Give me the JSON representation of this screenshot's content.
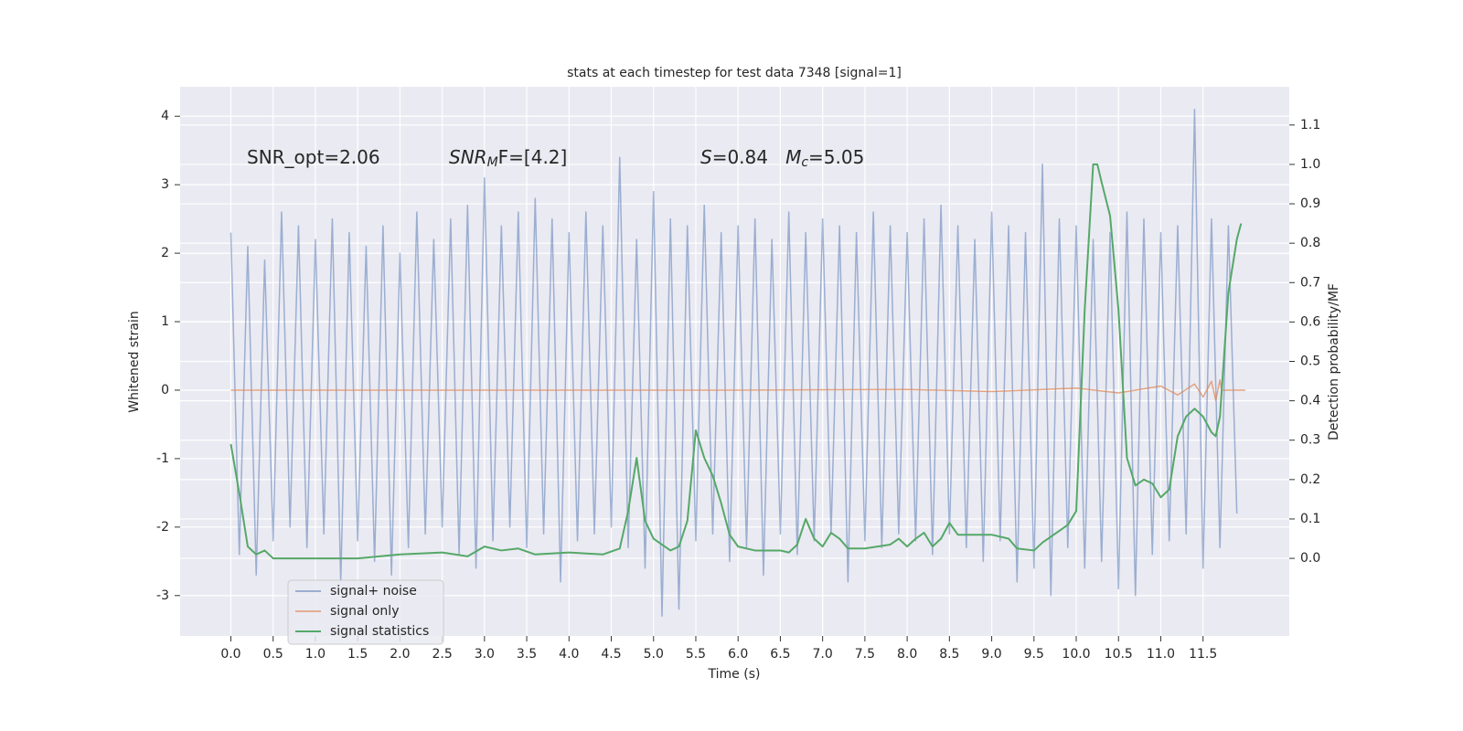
{
  "chart_data": {
    "type": "line",
    "title": "stats at each timestep for test data 7348 [signal=1]",
    "xlabel": "Time (s)",
    "ylabel": "Whitened strain",
    "y2label": "Detection probability/MF",
    "annotations": [
      [
        "SNR_opt=2.06"
      ],
      [
        "SNR",
        "M",
        "F=[4.2]"
      ],
      [
        "S",
        "=0.84   ",
        "M",
        "c",
        "=5.05"
      ]
    ],
    "xlim": [
      -0.6,
      12.52
    ],
    "xticks": [
      {
        "value": 0,
        "label": "0.0"
      },
      0.5,
      {
        "value": 1,
        "label": "1.0"
      },
      1.5,
      {
        "value": 2,
        "label": "2.0"
      },
      2.5,
      {
        "value": 3,
        "label": "3.0"
      },
      3.5,
      {
        "value": 4,
        "label": "4.0"
      },
      4.5,
      {
        "value": 5,
        "label": "5.0"
      },
      5.5,
      {
        "value": 6,
        "label": "6.0"
      },
      6.5,
      {
        "value": 7,
        "label": "7.0"
      },
      7.5,
      {
        "value": 8,
        "label": "8.0"
      },
      8.5,
      {
        "value": 9,
        "label": "9.0"
      },
      9.5,
      {
        "value": 10,
        "label": "10.0"
      },
      10.5,
      {
        "value": 11,
        "label": "11.0"
      },
      11.5
    ],
    "ylim": [
      -3.59,
      4.43
    ],
    "yticks": [
      -3,
      -2,
      -1,
      0,
      1,
      2,
      3,
      4
    ],
    "y2lim": [
      -0.197,
      1.197
    ],
    "y2ticks": [
      {
        "value": 0,
        "label": "0.0"
      },
      0.1,
      0.2,
      0.3,
      0.4,
      0.5,
      0.6,
      0.7,
      0.8,
      0.9,
      {
        "value": 1,
        "label": "1.0"
      },
      1.1
    ],
    "grid": true,
    "legend": "lower left",
    "series": [
      {
        "name": "signal+ noise",
        "color": "#4c72b0",
        "x": [
          0.0,
          0.1,
          0.2,
          0.3,
          0.4,
          0.5,
          0.6,
          0.7,
          0.8,
          0.9,
          1.0,
          1.1,
          1.2,
          1.3,
          1.4,
          1.5,
          1.6,
          1.7,
          1.8,
          1.9,
          2.0,
          2.1,
          2.2,
          2.3,
          2.4,
          2.5,
          2.6,
          2.7,
          2.8,
          2.9,
          3.0,
          3.1,
          3.2,
          3.3,
          3.4,
          3.5,
          3.6,
          3.7,
          3.8,
          3.9,
          4.0,
          4.1,
          4.2,
          4.3,
          4.4,
          4.5,
          4.6,
          4.7,
          4.8,
          4.9,
          5.0,
          5.1,
          5.2,
          5.3,
          5.4,
          5.5,
          5.6,
          5.7,
          5.8,
          5.9,
          6.0,
          6.1,
          6.2,
          6.3,
          6.4,
          6.5,
          6.6,
          6.7,
          6.8,
          6.9,
          7.0,
          7.1,
          7.2,
          7.3,
          7.4,
          7.5,
          7.6,
          7.7,
          7.8,
          7.9,
          8.0,
          8.1,
          8.2,
          8.3,
          8.4,
          8.5,
          8.6,
          8.7,
          8.8,
          8.9,
          9.0,
          9.1,
          9.2,
          9.3,
          9.4,
          9.5,
          9.6,
          9.7,
          9.8,
          9.9,
          10.0,
          10.1,
          10.2,
          10.3,
          10.4,
          10.5,
          10.6,
          10.7,
          10.8,
          10.9,
          11.0,
          11.1,
          11.2,
          11.3,
          11.4,
          11.5,
          11.6,
          11.7,
          11.8,
          11.9
        ],
        "values": [
          2.3,
          -2.4,
          2.1,
          -2.7,
          1.9,
          -2.2,
          2.6,
          -2.0,
          2.4,
          -2.3,
          2.2,
          -2.1,
          2.5,
          -2.8,
          2.3,
          -2.2,
          2.1,
          -2.5,
          2.4,
          -2.7,
          2.0,
          -2.3,
          2.6,
          -2.1,
          2.2,
          -2.0,
          2.5,
          -2.4,
          2.7,
          -2.6,
          3.1,
          -2.2,
          2.4,
          -2.0,
          2.6,
          -2.3,
          2.8,
          -2.1,
          2.5,
          -2.8,
          2.3,
          -2.2,
          2.6,
          -2.1,
          2.4,
          -2.0,
          3.4,
          -2.3,
          2.2,
          -2.6,
          2.9,
          -3.3,
          2.5,
          -3.2,
          2.4,
          -2.2,
          2.7,
          -2.1,
          2.3,
          -2.5,
          2.4,
          -2.3,
          2.5,
          -2.7,
          2.2,
          -2.1,
          2.6,
          -2.4,
          2.3,
          -2.2,
          2.5,
          -2.1,
          2.4,
          -2.8,
          2.3,
          -2.2,
          2.6,
          -2.3,
          2.4,
          -2.1,
          2.3,
          -2.2,
          2.5,
          -2.4,
          2.7,
          -2.1,
          2.4,
          -2.3,
          2.2,
          -2.5,
          2.6,
          -2.2,
          2.4,
          -2.8,
          2.3,
          -2.6,
          3.3,
          -3.0,
          2.5,
          -2.3,
          2.4,
          -2.6,
          2.2,
          -2.5,
          2.3,
          -2.9,
          2.6,
          -3.0,
          2.5,
          -2.4,
          2.3,
          -2.2,
          2.4,
          -2.1,
          4.1,
          -2.6,
          2.5,
          -2.3,
          2.4,
          -1.8
        ]
      },
      {
        "name": "signal only",
        "color": "#dd8452",
        "x": [
          0.0,
          6.0,
          8.0,
          9.0,
          10.0,
          10.5,
          11.0,
          11.2,
          11.4,
          11.5,
          11.6,
          11.65,
          11.7,
          11.72,
          12.0
        ],
        "values": [
          0,
          0,
          0.01,
          -0.02,
          0.03,
          -0.04,
          0.06,
          -0.07,
          0.09,
          -0.1,
          0.13,
          -0.15,
          0.15,
          0,
          0
        ]
      },
      {
        "name": "signal statistics",
        "color": "#55a868",
        "axis": "y2",
        "x": [
          0.0,
          0.1,
          0.2,
          0.3,
          0.4,
          0.5,
          0.7,
          1.0,
          1.5,
          2.0,
          2.5,
          2.8,
          3.0,
          3.2,
          3.4,
          3.6,
          4.0,
          4.4,
          4.6,
          4.7,
          4.8,
          4.9,
          5.0,
          5.2,
          5.3,
          5.4,
          5.5,
          5.6,
          5.7,
          5.8,
          5.9,
          6.0,
          6.2,
          6.5,
          6.6,
          6.7,
          6.8,
          6.9,
          7.0,
          7.1,
          7.2,
          7.3,
          7.5,
          7.8,
          7.9,
          8.0,
          8.1,
          8.2,
          8.3,
          8.4,
          8.5,
          8.6,
          8.8,
          9.0,
          9.2,
          9.3,
          9.5,
          9.6,
          9.8,
          9.9,
          10.0,
          10.1,
          10.2,
          10.25,
          10.3,
          10.4,
          10.5,
          10.6,
          10.7,
          10.8,
          10.9,
          11.0,
          11.1,
          11.2,
          11.3,
          11.4,
          11.5,
          11.6,
          11.65,
          11.7,
          11.8,
          11.9,
          11.95
        ],
        "values": [
          0.29,
          0.165,
          0.03,
          0.01,
          0.02,
          0.0,
          0.0,
          0.0,
          0.0,
          0.01,
          0.015,
          0.005,
          0.03,
          0.02,
          0.025,
          0.01,
          0.015,
          0.01,
          0.025,
          0.12,
          0.255,
          0.095,
          0.05,
          0.02,
          0.03,
          0.095,
          0.325,
          0.255,
          0.21,
          0.14,
          0.06,
          0.03,
          0.02,
          0.02,
          0.015,
          0.035,
          0.1,
          0.05,
          0.03,
          0.065,
          0.05,
          0.025,
          0.025,
          0.035,
          0.05,
          0.03,
          0.05,
          0.065,
          0.03,
          0.05,
          0.09,
          0.06,
          0.06,
          0.06,
          0.05,
          0.025,
          0.02,
          0.04,
          0.07,
          0.085,
          0.12,
          0.63,
          1.0,
          1.0,
          0.955,
          0.87,
          0.63,
          0.255,
          0.185,
          0.2,
          0.19,
          0.155,
          0.175,
          0.31,
          0.36,
          0.38,
          0.36,
          0.32,
          0.31,
          0.36,
          0.675,
          0.81,
          0.85
        ]
      }
    ]
  }
}
